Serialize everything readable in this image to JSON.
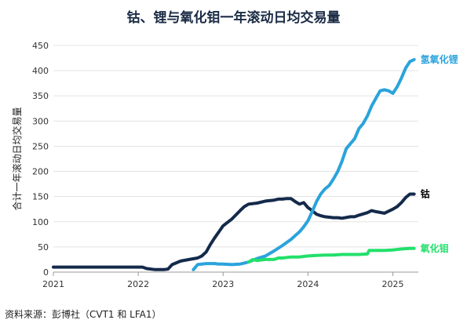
{
  "title": "钴、锂与氧化钼一年滚动日均交易量",
  "source": "资料来源：彭博社（CVT1 和 LFA1）",
  "chart_data": {
    "type": "line",
    "title": "钴、锂与氧化钼一年滚动日均交易量",
    "xlabel": "",
    "ylabel": "合计一年滚动日均交易量",
    "ylim": [
      0,
      450
    ],
    "xlim": [
      2021.0,
      2025.3
    ],
    "yticks": [
      0,
      50,
      100,
      150,
      200,
      250,
      300,
      350,
      400,
      450
    ],
    "xticks": [
      2021,
      2022,
      2023,
      2024,
      2025
    ],
    "xtick_labels": [
      "2021",
      "2022",
      "2023",
      "2024",
      "2025"
    ],
    "grid": "horizontal",
    "legend": "end-labels",
    "series": [
      {
        "name": "钴",
        "color": "#142a4b",
        "x": [
          2021.0,
          2021.2,
          2021.5,
          2021.8,
          2022.0,
          2022.05,
          2022.1,
          2022.2,
          2022.3,
          2022.35,
          2022.4,
          2022.5,
          2022.6,
          2022.7,
          2022.75,
          2022.8,
          2022.85,
          2022.9,
          2022.95,
          2023.0,
          2023.1,
          2023.2,
          2023.25,
          2023.3,
          2023.4,
          2023.5,
          2023.6,
          2023.65,
          2023.7,
          2023.75,
          2023.8,
          2023.85,
          2023.9,
          2023.95,
          2024.0,
          2024.05,
          2024.1,
          2024.15,
          2024.2,
          2024.3,
          2024.35,
          2024.4,
          2024.5,
          2024.55,
          2024.6,
          2024.7,
          2024.75,
          2024.8,
          2024.9,
          2025.0,
          2025.05,
          2025.1,
          2025.15,
          2025.2,
          2025.25
        ],
        "values": [
          10,
          10,
          10,
          10,
          10,
          10,
          7,
          5,
          5,
          6,
          15,
          22,
          25,
          28,
          32,
          40,
          55,
          68,
          80,
          92,
          105,
          122,
          130,
          135,
          137,
          141,
          143,
          145,
          145,
          146,
          146,
          140,
          135,
          138,
          128,
          122,
          115,
          112,
          110,
          108,
          108,
          107,
          110,
          110,
          113,
          118,
          122,
          120,
          117,
          125,
          130,
          138,
          148,
          155,
          155
        ]
      },
      {
        "name": "氢氧化锂",
        "color": "#2aa3dc",
        "x": [
          2022.65,
          2022.7,
          2022.8,
          2022.9,
          2022.95,
          2023.0,
          2023.1,
          2023.2,
          2023.3,
          2023.4,
          2023.5,
          2023.6,
          2023.7,
          2023.8,
          2023.9,
          2023.95,
          2024.0,
          2024.05,
          2024.1,
          2024.15,
          2024.2,
          2024.25,
          2024.3,
          2024.35,
          2024.4,
          2024.45,
          2024.5,
          2024.55,
          2024.6,
          2024.65,
          2024.7,
          2024.75,
          2024.8,
          2024.85,
          2024.9,
          2024.95,
          2025.0,
          2025.05,
          2025.1,
          2025.15,
          2025.2,
          2025.25
        ],
        "values": [
          5,
          15,
          17,
          17,
          16,
          16,
          15,
          16,
          20,
          27,
          32,
          42,
          53,
          65,
          80,
          90,
          102,
          120,
          140,
          155,
          165,
          172,
          185,
          200,
          220,
          245,
          255,
          265,
          285,
          295,
          310,
          330,
          345,
          360,
          362,
          360,
          355,
          368,
          385,
          405,
          418,
          422
        ]
      },
      {
        "name": "氧化钼",
        "color": "#22e06a",
        "x": [
          2023.3,
          2023.35,
          2023.4,
          2023.5,
          2023.6,
          2023.65,
          2023.7,
          2023.8,
          2023.9,
          2024.0,
          2024.1,
          2024.2,
          2024.3,
          2024.4,
          2024.5,
          2024.6,
          2024.7,
          2024.72,
          2024.8,
          2024.9,
          2025.0,
          2025.1,
          2025.2,
          2025.25
        ],
        "values": [
          20,
          25,
          23,
          25,
          25,
          28,
          28,
          30,
          30,
          32,
          33,
          34,
          34,
          35,
          35,
          35,
          36,
          43,
          43,
          43,
          44,
          46,
          47,
          47
        ]
      }
    ]
  }
}
